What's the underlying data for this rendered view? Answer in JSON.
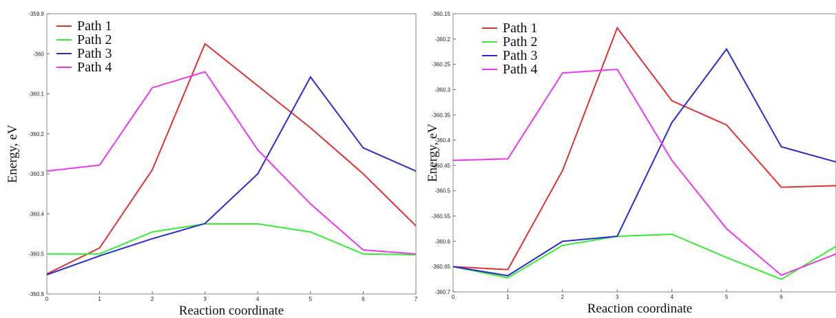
{
  "chart_data": [
    {
      "type": "line",
      "xlabel": "Reaction coordinate",
      "ylabel": "Energy, eV",
      "xlim": [
        0,
        7
      ],
      "ylim": [
        -360.6,
        -359.9
      ],
      "xticks": [
        "0",
        "1",
        "2",
        "3",
        "4",
        "5",
        "6",
        "7"
      ],
      "yticks": [
        "-359.9",
        "-360",
        "-360.1",
        "-360.2",
        "-360.3",
        "-360.4",
        "-360.5",
        "-360.6"
      ],
      "legend_position": "top-left",
      "x": [
        0,
        1,
        2,
        3,
        4,
        5,
        6,
        7
      ],
      "series": [
        {
          "name": "Path 1",
          "color": "#e03030",
          "values": [
            -360.55,
            -360.485,
            -360.29,
            -359.975,
            -360.08,
            -360.185,
            -360.3,
            -360.43
          ]
        },
        {
          "name": "Path 2",
          "color": "#33ee33",
          "values": [
            -360.5,
            -360.5,
            -360.445,
            -360.425,
            -360.425,
            -360.445,
            -360.5,
            -360.502
          ]
        },
        {
          "name": "Path 3",
          "color": "#2a2ad0",
          "values": [
            -360.552,
            -360.505,
            -360.462,
            -360.424,
            -360.3,
            -360.058,
            -360.235,
            -360.293
          ]
        },
        {
          "name": "Path 4",
          "color": "#f035f0",
          "values": [
            -360.293,
            -360.278,
            -360.085,
            -360.045,
            -360.24,
            -360.375,
            -360.49,
            -360.5
          ]
        }
      ]
    },
    {
      "type": "line",
      "xlabel": "Reaction coordinate",
      "ylabel": "Energy, eV",
      "xlim": [
        0,
        7
      ],
      "ylim": [
        -360.7,
        -360.15
      ],
      "xticks": [
        "0",
        "1",
        "2",
        "3",
        "4",
        "5",
        "6"
      ],
      "yticks": [
        "-360.15",
        "-360.2",
        "-360.25",
        "-360.3",
        "-360.35",
        "-360.4",
        "-360.45",
        "-360.5",
        "-360.55",
        "-360.6",
        "-360.65",
        "-360.7"
      ],
      "legend_position": "top-left",
      "x": [
        0,
        1,
        2,
        3,
        4,
        5,
        6,
        7
      ],
      "series": [
        {
          "name": "Path 1",
          "color": "#e03030",
          "values": [
            -360.65,
            -360.656,
            -360.46,
            -360.178,
            -360.322,
            -360.37,
            -360.493,
            -360.49
          ]
        },
        {
          "name": "Path 2",
          "color": "#33ee33",
          "values": [
            -360.65,
            -360.672,
            -360.608,
            -360.59,
            -360.586,
            -360.632,
            -360.675,
            -360.61
          ]
        },
        {
          "name": "Path 3",
          "color": "#2a2ad0",
          "values": [
            -360.65,
            -360.668,
            -360.6,
            -360.59,
            -360.365,
            -360.22,
            -360.413,
            -360.443
          ]
        },
        {
          "name": "Path 4",
          "color": "#f035f0",
          "values": [
            -360.44,
            -360.437,
            -360.267,
            -360.26,
            -360.44,
            -360.575,
            -360.667,
            -360.625
          ]
        }
      ]
    }
  ]
}
